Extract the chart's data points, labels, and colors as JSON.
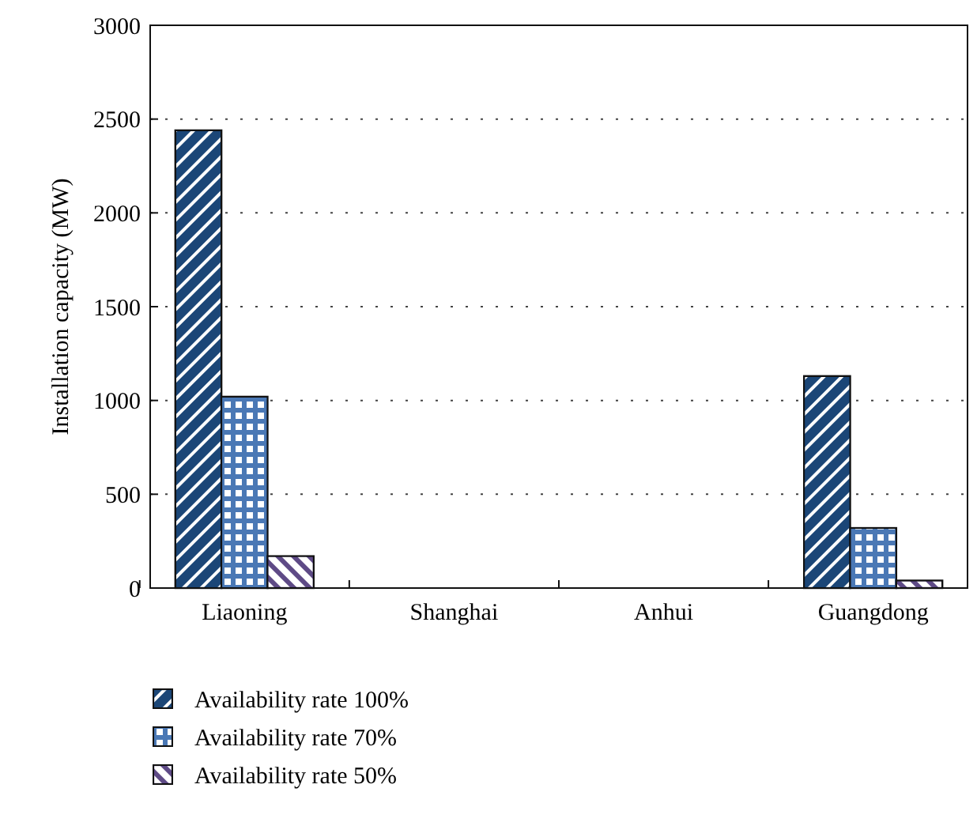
{
  "chart_data": {
    "type": "bar",
    "ylabel": "Installation capacity (MW)",
    "categories": [
      "Liaoning",
      "Shanghai",
      "Anhui",
      "Guangdong"
    ],
    "series": [
      {
        "name": "Availability rate 100%",
        "color": "#1b4677",
        "values": [
          2440,
          0,
          0,
          1130
        ]
      },
      {
        "name": "Availability rate 70%",
        "color": "#4a78b5",
        "values": [
          1020,
          0,
          0,
          320
        ]
      },
      {
        "name": "Availability rate 50%",
        "color": "#5e4a86",
        "values": [
          170,
          0,
          0,
          40
        ]
      }
    ],
    "ylim": [
      0,
      3000
    ],
    "yticks": [
      0,
      500,
      1000,
      1500,
      2000,
      2500,
      3000
    ],
    "grid": "y",
    "legend": "bottom"
  }
}
